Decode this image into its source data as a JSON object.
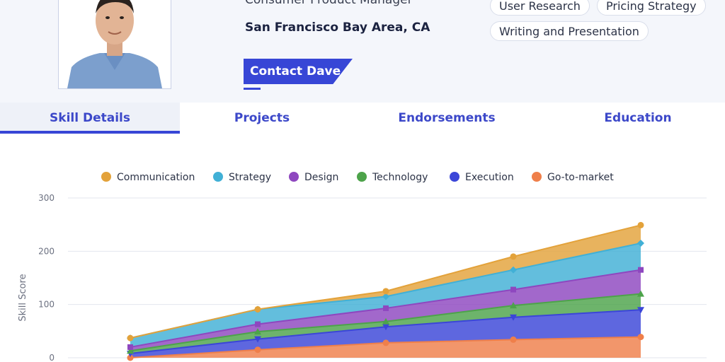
{
  "profile": {
    "job_title": "Consumer Product Manager",
    "location": "San Francisco Bay Area, CA",
    "contact_label": "Contact Dave"
  },
  "skills_chips": [
    "User Research",
    "Pricing Strategy",
    "Writing and Presentation"
  ],
  "tabs": [
    {
      "label": "Skill Details",
      "active": true
    },
    {
      "label": "Projects",
      "active": false
    },
    {
      "label": "Endorsements",
      "active": false
    },
    {
      "label": "Education",
      "active": false
    }
  ],
  "colors": {
    "accent": "#3746d6",
    "tab_text": "#3c48c9"
  },
  "chart_data": {
    "type": "area",
    "stacked": true,
    "x": [
      "1",
      "2",
      "3",
      "4",
      "5"
    ],
    "ylabel": "Skill Score",
    "xlabel": "",
    "ylim": [
      0,
      300
    ],
    "yticks": [
      0,
      100,
      200,
      300
    ],
    "grid": true,
    "legend_position": "top",
    "series": [
      {
        "name": "Go-to-market",
        "color": "#ef7f4a",
        "marker": "circle",
        "values": [
          0,
          15,
          28,
          34,
          39
        ]
      },
      {
        "name": "Execution",
        "color": "#3b46d8",
        "marker": "triangle-down",
        "values": [
          8,
          20,
          30,
          42,
          51
        ]
      },
      {
        "name": "Technology",
        "color": "#4da34a",
        "marker": "triangle-up",
        "values": [
          5,
          14,
          10,
          22,
          30
        ]
      },
      {
        "name": "Design",
        "color": "#8e47bf",
        "marker": "square",
        "values": [
          7,
          14,
          25,
          30,
          45
        ]
      },
      {
        "name": "Strategy",
        "color": "#41b0d6",
        "marker": "diamond",
        "values": [
          17,
          28,
          22,
          37,
          50
        ]
      },
      {
        "name": "Communication",
        "color": "#e3a23a",
        "marker": "circle",
        "values": [
          0,
          0,
          10,
          25,
          34
        ]
      }
    ],
    "legend_order": [
      "Communication",
      "Strategy",
      "Design",
      "Technology",
      "Execution",
      "Go-to-market"
    ]
  }
}
